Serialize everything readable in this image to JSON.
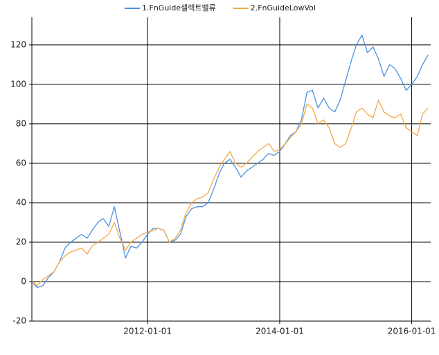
{
  "chart_data": {
    "type": "line",
    "x": [
      "2010-04-01",
      "2010-05-01",
      "2010-06-01",
      "2010-07-01",
      "2010-08-01",
      "2010-09-01",
      "2010-10-01",
      "2010-11-01",
      "2010-12-01",
      "2011-01-01",
      "2011-02-01",
      "2011-03-01",
      "2011-04-01",
      "2011-05-01",
      "2011-06-01",
      "2011-07-01",
      "2011-08-01",
      "2011-09-01",
      "2011-10-01",
      "2011-11-01",
      "2011-12-01",
      "2012-01-01",
      "2012-02-01",
      "2012-03-01",
      "2012-04-01",
      "2012-05-01",
      "2012-06-01",
      "2012-07-01",
      "2012-08-01",
      "2012-09-01",
      "2012-10-01",
      "2012-11-01",
      "2012-12-01",
      "2013-01-01",
      "2013-02-01",
      "2013-03-01",
      "2013-04-01",
      "2013-05-01",
      "2013-06-01",
      "2013-07-01",
      "2013-08-01",
      "2013-09-01",
      "2013-10-01",
      "2013-11-01",
      "2013-12-01",
      "2014-01-01",
      "2014-02-01",
      "2014-03-01",
      "2014-04-01",
      "2014-05-01",
      "2014-06-01",
      "2014-07-01",
      "2014-08-01",
      "2014-09-01",
      "2014-10-01",
      "2014-11-01",
      "2014-12-01",
      "2015-01-01",
      "2015-02-01",
      "2015-03-01",
      "2015-04-01",
      "2015-05-01",
      "2015-06-01",
      "2015-07-01",
      "2015-08-01",
      "2015-09-01",
      "2015-10-01",
      "2015-11-01",
      "2015-12-01",
      "2016-01-01",
      "2016-02-01",
      "2016-03-01",
      "2016-04-01"
    ],
    "series": [
      {
        "name": "1.FnGuide셀렉트밸류",
        "color": "#4a90e2",
        "values": [
          0,
          -3,
          -2,
          2,
          5,
          10,
          17,
          20,
          22,
          24,
          22,
          26,
          30,
          32,
          28,
          38,
          25,
          12,
          18,
          17,
          20,
          24,
          27,
          27,
          26,
          20,
          21,
          24,
          33,
          37,
          38,
          38,
          40,
          47,
          55,
          60,
          62,
          58,
          53,
          56,
          58,
          60,
          62,
          65,
          64,
          66,
          70,
          74,
          76,
          82,
          96,
          97,
          88,
          93,
          88,
          86,
          92,
          102,
          112,
          120,
          125,
          116,
          119,
          113,
          104,
          110,
          108,
          103,
          97,
          100,
          104,
          110,
          115
        ]
      },
      {
        "name": "2.FnGuideLowVol",
        "color": "#f5a742",
        "values": [
          0,
          -2,
          1,
          3,
          5,
          10,
          13,
          15,
          16,
          17,
          14,
          18,
          20,
          22,
          24,
          30,
          22,
          16,
          20,
          22,
          24,
          25,
          26,
          27,
          26,
          20,
          22,
          26,
          35,
          40,
          42,
          43,
          45,
          52,
          58,
          62,
          66,
          60,
          58,
          60,
          63,
          66,
          68,
          70,
          66,
          67,
          70,
          73,
          76,
          80,
          90,
          88,
          80,
          82,
          78,
          70,
          68,
          70,
          78,
          86,
          88,
          85,
          83,
          92,
          86,
          84,
          83,
          85,
          78,
          76,
          74,
          85,
          88
        ]
      }
    ],
    "xlim": [
      "2010-04-01",
      "2016-04-15"
    ],
    "xticks": [
      "2012-01-01",
      "2014-01-01",
      "2016-01-01"
    ],
    "ylim": [
      -20,
      134
    ],
    "yticks": [
      -20,
      0,
      20,
      40,
      60,
      80,
      100,
      120
    ],
    "grid": true,
    "legend": "top"
  }
}
